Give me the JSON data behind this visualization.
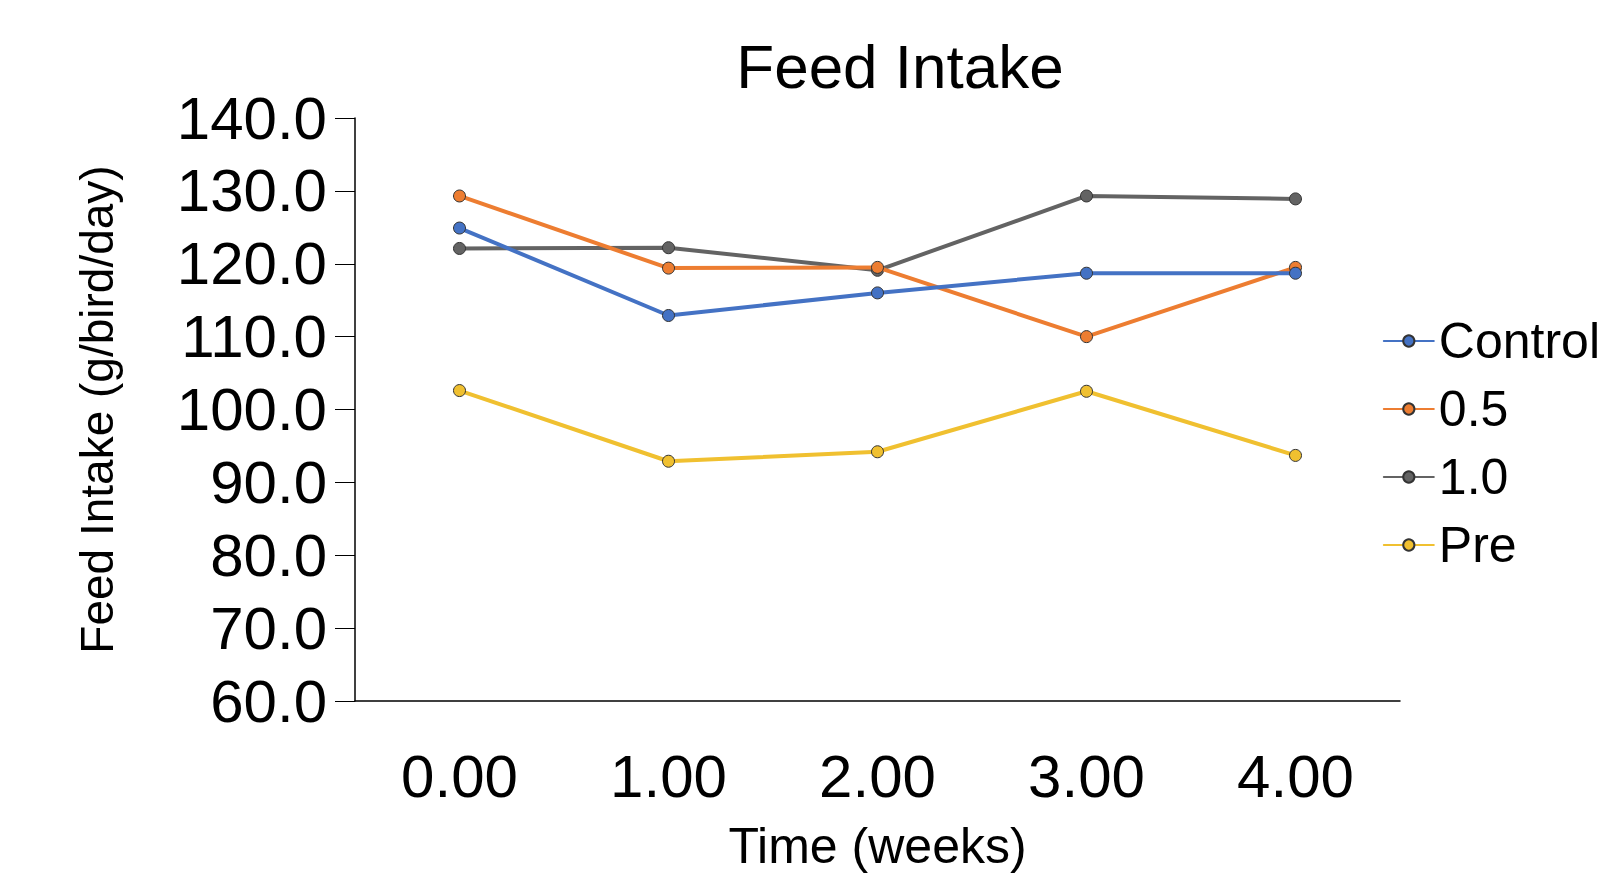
{
  "chart_data": {
    "type": "line",
    "title": "Feed Intake",
    "xlabel": "Time (weeks)",
    "ylabel": "Feed Intake (g/bird/day)",
    "x": [
      0,
      1,
      2,
      3,
      4
    ],
    "series": [
      {
        "name": "Control",
        "color": "#4472c4",
        "values": [
          124.9,
          112.9,
          116.0,
          118.7,
          118.7
        ]
      },
      {
        "name": "0.5",
        "color": "#ed7d31",
        "values": [
          129.3,
          119.4,
          119.5,
          110.0,
          119.5
        ]
      },
      {
        "name": "1.0",
        "color": "#636363",
        "values": [
          122.1,
          122.2,
          119.1,
          129.3,
          128.9
        ]
      },
      {
        "name": "Pre",
        "color": "#f0c030",
        "values": [
          102.6,
          92.9,
          94.2,
          102.5,
          93.7
        ]
      }
    ],
    "xlim": [
      -0.5,
      4.5
    ],
    "xticks": [
      {
        "value": 0,
        "label": "0.00"
      },
      {
        "value": 1,
        "label": "1.00"
      },
      {
        "value": 2,
        "label": "2.00"
      },
      {
        "value": 3,
        "label": "3.00"
      },
      {
        "value": 4,
        "label": "4.00"
      }
    ],
    "ylim": [
      60,
      140
    ],
    "yticks": [
      {
        "value": 60,
        "label": "60.0"
      },
      {
        "value": 70,
        "label": "70.0"
      },
      {
        "value": 80,
        "label": "80.0"
      },
      {
        "value": 90,
        "label": "90.0"
      },
      {
        "value": 100,
        "label": "100.0"
      },
      {
        "value": 110,
        "label": "110.0"
      },
      {
        "value": 120,
        "label": "120.0"
      },
      {
        "value": 130,
        "label": "130.0"
      },
      {
        "value": 140,
        "label": "140.0"
      }
    ],
    "grid": false,
    "legend": "right",
    "marker": "circle",
    "line_style": "solid"
  }
}
